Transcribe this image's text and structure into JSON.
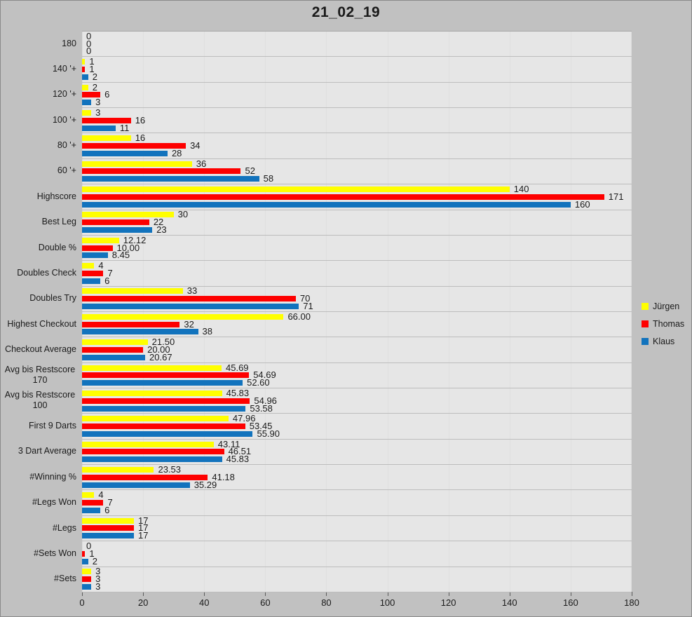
{
  "title": "21_02_19",
  "chart_data": {
    "type": "bar",
    "orientation": "horizontal",
    "title": "21_02_19",
    "xlabel": "",
    "ylabel": "",
    "xlim": [
      0,
      180
    ],
    "x_ticks": [
      0,
      20,
      40,
      60,
      80,
      100,
      120,
      140,
      160,
      180
    ],
    "grid": true,
    "legend_position": "right",
    "categories": [
      "180",
      "140 '+",
      "120 '+",
      "100 '+",
      "80 '+",
      "60 '+",
      "Highscore",
      "Best Leg",
      "Double %",
      "Doubles Check",
      "Doubles Try",
      "Highest Checkout",
      "Checkout Average",
      "Avg bis Restscore 170",
      "Avg bis Restscore 100",
      "First 9 Darts",
      "3 Dart Average",
      "#Winning %",
      "#Legs Won",
      "#Legs",
      "#Sets Won",
      "#Sets"
    ],
    "series": [
      {
        "name": "Jürgen",
        "color": "#ffff00",
        "values": [
          0,
          1,
          2,
          3,
          16,
          36,
          140,
          30,
          12.12,
          4,
          33,
          66.0,
          21.5,
          45.69,
          45.83,
          47.96,
          43.11,
          23.53,
          4,
          17,
          0,
          3
        ],
        "labels": [
          "0",
          "1",
          "2",
          "3",
          "16",
          "36",
          "140",
          "30",
          "12.12",
          "4",
          "33",
          "66.00",
          "21.50",
          "45.69",
          "45.83",
          "47.96",
          "43.11",
          "23.53",
          "4",
          "17",
          "0",
          "3"
        ]
      },
      {
        "name": "Thomas",
        "color": "#fe0000",
        "values": [
          0,
          1,
          6,
          16,
          34,
          52,
          171,
          22,
          10.0,
          7,
          70,
          32,
          20.0,
          54.69,
          54.96,
          53.45,
          46.51,
          41.18,
          7,
          17,
          1,
          3
        ],
        "labels": [
          "0",
          "1",
          "6",
          "16",
          "34",
          "52",
          "171",
          "22",
          "10.00",
          "7",
          "70",
          "32",
          "20.00",
          "54.69",
          "54.96",
          "53.45",
          "46.51",
          "41.18",
          "7",
          "17",
          "1",
          "3"
        ]
      },
      {
        "name": "Klaus",
        "color": "#1273bd",
        "values": [
          0,
          2,
          3,
          11,
          28,
          58,
          160,
          23,
          8.45,
          6,
          71,
          38,
          20.67,
          52.6,
          53.58,
          55.9,
          45.83,
          35.29,
          6,
          17,
          2,
          3
        ],
        "labels": [
          "0",
          "2",
          "3",
          "11",
          "28",
          "58",
          "160",
          "23",
          "8.45",
          "6",
          "71",
          "38",
          "20.67",
          "52.60",
          "53.58",
          "55.90",
          "45.83",
          "35.29",
          "6",
          "17",
          "2",
          "3"
        ]
      }
    ]
  },
  "colors": {
    "background": "#c1c1c1",
    "plot_band": "#e9e9e9",
    "band_separator": "#bdbdbd",
    "gridline": "#636363",
    "axis_line": "#3f3f3f",
    "text": "#1a1a1a",
    "series_yellow": "#ffff00",
    "series_red": "#fe0000",
    "series_blue": "#1273bd"
  }
}
